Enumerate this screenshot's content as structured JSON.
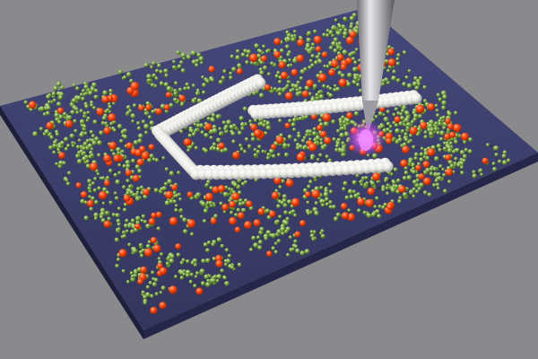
{
  "scene": {
    "background_color": "#8a8a8d",
    "substrate_color": "#3a3c66",
    "substrate_edge_color": "#1e1f3a",
    "white_atom_color": "#e9e9e4",
    "orange_atom_color": "#ff4a12",
    "green_atom_color": "#7fa84a",
    "bond_color": "#2b2b2b",
    "tip_color": "#b8b8bc",
    "tip_glow_color": "#e23cff",
    "icons": [
      "afm-tip-icon",
      "tip-glow-icon",
      "substrate-surface",
      "molecular-layer",
      "white-atom-rail"
    ]
  }
}
